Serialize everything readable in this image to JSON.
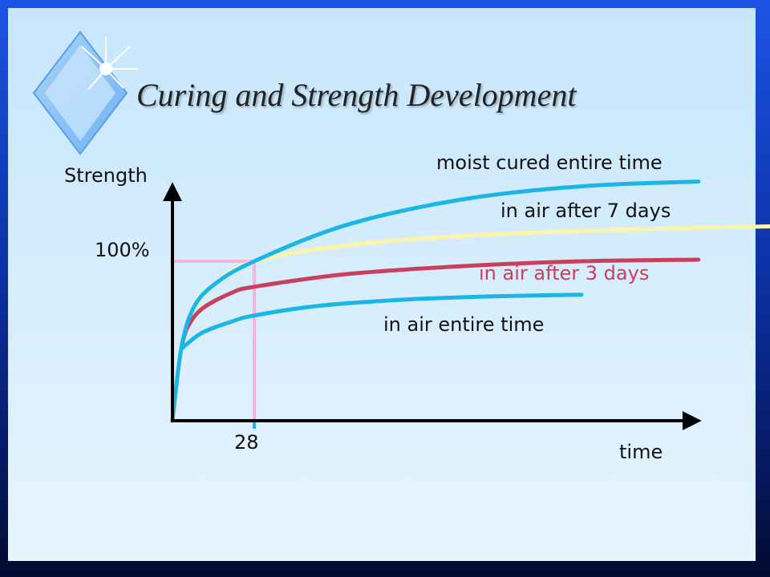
{
  "slide": {
    "title": "Curing and Strength Development"
  },
  "chart_data": {
    "type": "line",
    "ylabel": "Strength",
    "xlabel": "time",
    "y_reference_label": "100%",
    "x_reference_label": "28",
    "colors": {
      "axes": "#000000",
      "reference": "#f7b3d9",
      "moist": "#1bb6e6",
      "air7": "#fbf5a8",
      "air3": "#c9405a",
      "air_all": "#1bb6e6"
    },
    "series": [
      {
        "name": "moist cured entire time",
        "label_color": "#111111",
        "x": [
          0,
          3,
          7,
          14,
          28,
          60,
          100,
          140,
          180
        ],
        "y": [
          0,
          45,
          70,
          85,
          100,
          123,
          139,
          147,
          150
        ]
      },
      {
        "name": "in air after 7 days",
        "label_color": "#111111",
        "x": [
          7,
          14,
          28,
          60,
          100,
          140,
          180,
          210
        ],
        "y": [
          70,
          85,
          100,
          110,
          116,
          119,
          121,
          122
        ]
      },
      {
        "name": "in air after 3 days",
        "label_color": "#c9405a",
        "x": [
          3,
          5,
          10,
          20,
          28,
          60,
          100,
          140,
          180
        ],
        "y": [
          45,
          58,
          70,
          80,
          84,
          92,
          97,
          100,
          101
        ]
      },
      {
        "name": "in air entire time",
        "label_color": "#111111",
        "x": [
          3,
          10,
          20,
          28,
          50,
          80,
          110,
          140
        ],
        "y": [
          45,
          55,
          62,
          66,
          72,
          76,
          78,
          79
        ]
      }
    ]
  }
}
